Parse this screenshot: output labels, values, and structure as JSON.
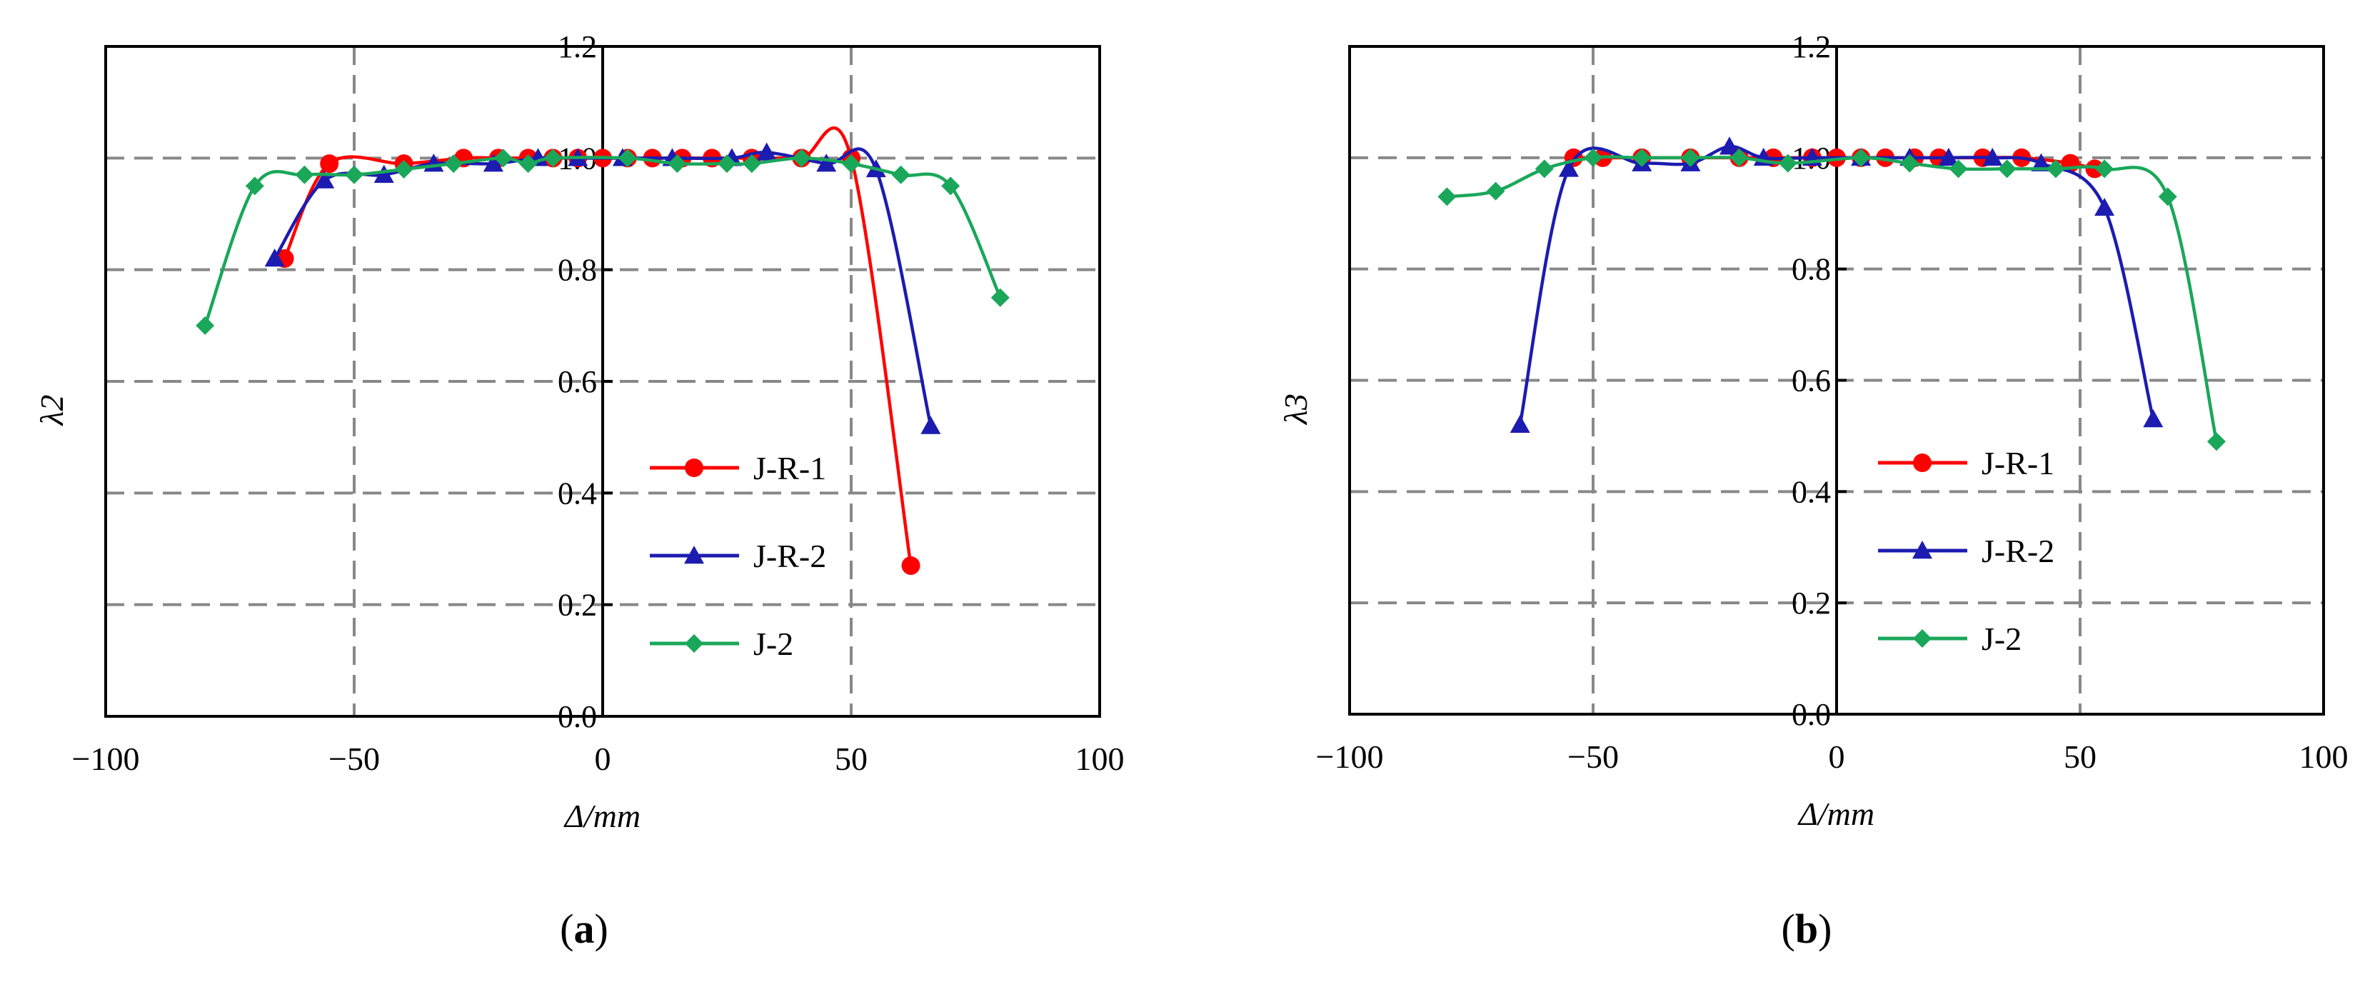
{
  "figure": {
    "panel_labels": [
      {
        "open": "(",
        "letter": "a",
        "close": ")"
      },
      {
        "open": "(",
        "letter": "b",
        "close": ")"
      }
    ]
  },
  "chart_data": [
    {
      "type": "line",
      "panel": "a",
      "xlabel": "Δ/mm",
      "ylabel": "λ2",
      "xlim": [
        -100,
        100
      ],
      "ylim": [
        0,
        1.2
      ],
      "x_ticks": [
        -100,
        -50,
        0,
        50,
        100
      ],
      "y_ticks": [
        0.0,
        0.2,
        0.4,
        0.6,
        0.8,
        1.0,
        1.2
      ],
      "x_tick_labels": [
        "−100",
        "−50",
        "0",
        "50",
        "100"
      ],
      "y_tick_labels": [
        "0.0",
        "0.2",
        "0.4",
        "0.6",
        "0.8",
        "1.0",
        "1.2"
      ],
      "grid": true,
      "legend_position": "lower-right",
      "series": [
        {
          "name": "J-R-1",
          "color": "#ff0000",
          "marker": "circle",
          "x": [
            -64,
            -55,
            -40,
            -28,
            -21,
            -15,
            -10,
            -5,
            0,
            5,
            10,
            16,
            22,
            30,
            40,
            50,
            62
          ],
          "y": [
            0.82,
            0.99,
            0.99,
            1.0,
            1.0,
            1.0,
            1.0,
            1.0,
            1.0,
            1.0,
            1.0,
            1.0,
            1.0,
            1.0,
            1.0,
            1.0,
            0.27
          ]
        },
        {
          "name": "J-R-2",
          "color": "#1c1cb0",
          "marker": "triangle",
          "x": [
            -66,
            -56,
            -44,
            -34,
            -22,
            -13,
            -5,
            4,
            14,
            26,
            33,
            45,
            55,
            66
          ],
          "y": [
            0.82,
            0.96,
            0.97,
            0.99,
            0.99,
            1.0,
            1.0,
            1.0,
            1.0,
            1.0,
            1.01,
            0.99,
            0.98,
            0.52
          ]
        },
        {
          "name": "J-2",
          "color": "#1aa75a",
          "marker": "diamond",
          "x": [
            -80,
            -70,
            -60,
            -50,
            -40,
            -30,
            -20,
            -15,
            -10,
            5,
            15,
            25,
            30,
            40,
            50,
            60,
            70,
            80
          ],
          "y": [
            0.7,
            0.95,
            0.97,
            0.97,
            0.98,
            0.99,
            1.0,
            0.99,
            1.0,
            1.0,
            0.99,
            0.99,
            0.99,
            1.0,
            0.99,
            0.97,
            0.95,
            0.75
          ]
        }
      ]
    },
    {
      "type": "line",
      "panel": "b",
      "xlabel": "Δ/mm",
      "ylabel": "λ3",
      "xlim": [
        -100,
        100
      ],
      "ylim": [
        0,
        1.2
      ],
      "x_ticks": [
        -100,
        -50,
        0,
        50,
        100
      ],
      "y_ticks": [
        0.0,
        0.2,
        0.4,
        0.6,
        0.8,
        1.0,
        1.2
      ],
      "x_tick_labels": [
        "−100",
        "−50",
        "0",
        "50",
        "100"
      ],
      "y_tick_labels": [
        "0.0",
        "0.2",
        "0.4",
        "0.6",
        "0.8",
        "1.0",
        "1.2"
      ],
      "grid": true,
      "legend_position": "lower-right",
      "series": [
        {
          "name": "J-R-1",
          "color": "#ff0000",
          "marker": "circle",
          "x": [
            -54,
            -48,
            -40,
            -30,
            -20,
            -13,
            -5,
            0,
            5,
            10,
            16,
            21,
            30,
            38,
            48,
            53
          ],
          "y": [
            1.0,
            1.0,
            1.0,
            1.0,
            1.0,
            1.0,
            1.0,
            1.0,
            1.0,
            1.0,
            1.0,
            1.0,
            1.0,
            1.0,
            0.99,
            0.98
          ]
        },
        {
          "name": "J-R-2",
          "color": "#1c1cb0",
          "marker": "triangle",
          "x": [
            -65,
            -55,
            -40,
            -30,
            -22,
            -15,
            -5,
            5,
            15,
            23,
            32,
            42,
            55,
            65
          ],
          "y": [
            0.52,
            0.98,
            0.99,
            0.99,
            1.02,
            1.0,
            1.0,
            1.0,
            1.0,
            1.0,
            1.0,
            0.99,
            0.91,
            0.53
          ]
        },
        {
          "name": "J-2",
          "color": "#1aa75a",
          "marker": "diamond",
          "x": [
            -80,
            -70,
            -60,
            -50,
            -40,
            -30,
            -20,
            -10,
            5,
            15,
            25,
            35,
            45,
            55,
            68,
            78
          ],
          "y": [
            0.93,
            0.94,
            0.98,
            1.0,
            1.0,
            1.0,
            1.0,
            0.99,
            1.0,
            0.99,
            0.98,
            0.98,
            0.98,
            0.98,
            0.93,
            0.49
          ]
        }
      ]
    }
  ]
}
